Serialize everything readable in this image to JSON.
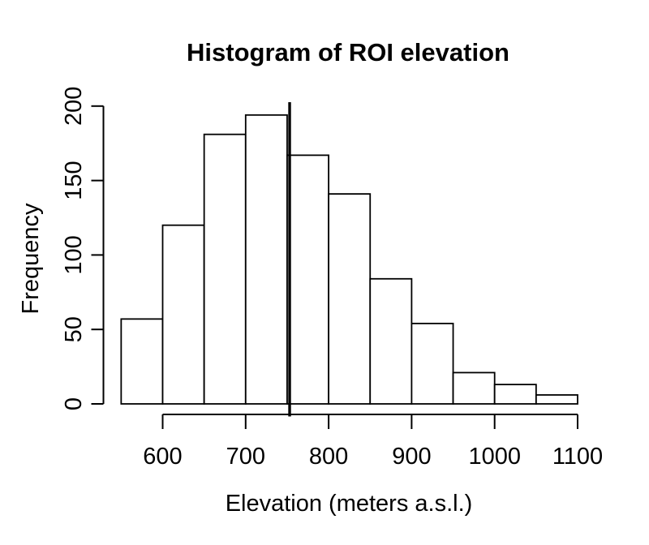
{
  "figure": {
    "background": "#ffffff",
    "foreground": "#000000"
  },
  "chart_data": {
    "type": "bar",
    "subtype": "histogram",
    "title": "Histogram of ROI elevation",
    "xlabel": "Elevation (meters a.s.l.)",
    "ylabel": "Frequency",
    "bin_start": 550,
    "bin_width": 50,
    "categories": [
      "550-600",
      "600-650",
      "650-700",
      "700-750",
      "750-800",
      "800-850",
      "850-900",
      "900-950",
      "950-1000",
      "1000-1050",
      "1050-1100"
    ],
    "values": [
      57,
      120,
      181,
      194,
      167,
      141,
      84,
      54,
      21,
      13,
      6
    ],
    "x_ticks": [
      600,
      700,
      800,
      900,
      1000,
      1100
    ],
    "y_ticks": [
      0,
      50,
      100,
      150,
      200
    ],
    "xlim": [
      550,
      1100
    ],
    "ylim": [
      0,
      200
    ],
    "vline_x": 753,
    "grid": "off",
    "legend": "none",
    "bar_fill": "#ffffff",
    "bar_stroke": "#000000",
    "axis_color": "#000000",
    "vline_color": "#000000"
  }
}
